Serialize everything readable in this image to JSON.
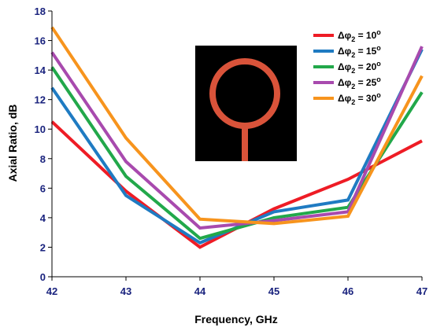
{
  "chart_data": {
    "type": "line",
    "xlabel": "Frequency, GHz",
    "ylabel": "Axial Ratio, dB",
    "xlim": [
      42,
      47
    ],
    "ylim": [
      0,
      18
    ],
    "xticks": [
      "42",
      "43",
      "44",
      "45",
      "46",
      "47"
    ],
    "yticks": [
      "0",
      "2",
      "4",
      "6",
      "8",
      "10",
      "12",
      "14",
      "16",
      "18"
    ],
    "x": [
      42,
      43,
      44,
      45,
      46,
      47
    ],
    "legend_position": "top-right",
    "series": [
      {
        "name": "Δφ",
        "sub": "2",
        "suffix": " = 10",
        "deg": "o",
        "color": "#ee1c25",
        "values": [
          10.5,
          5.8,
          2.0,
          4.6,
          6.6,
          9.2
        ]
      },
      {
        "name": "Δφ",
        "sub": "2",
        "suffix": " = 15",
        "deg": "o",
        "color": "#1f7bc2",
        "values": [
          12.8,
          5.5,
          2.3,
          4.4,
          5.2,
          15.4
        ]
      },
      {
        "name": "Δφ",
        "sub": "2",
        "suffix": " = 20",
        "deg": "o",
        "color": "#22a84a",
        "values": [
          14.2,
          6.8,
          2.6,
          4.0,
          4.7,
          12.5
        ]
      },
      {
        "name": "Δφ",
        "sub": "2",
        "suffix": " = 25",
        "deg": "o",
        "color": "#a84aae",
        "values": [
          15.2,
          7.8,
          3.3,
          3.8,
          4.4,
          15.6
        ]
      },
      {
        "name": "Δφ",
        "sub": "2",
        "suffix": " = 30",
        "deg": "o",
        "color": "#f7941d",
        "values": [
          16.9,
          9.4,
          3.9,
          3.6,
          4.1,
          13.6
        ]
      }
    ],
    "inset": {
      "background": "#000000",
      "ring_color": "#d9533a"
    }
  }
}
